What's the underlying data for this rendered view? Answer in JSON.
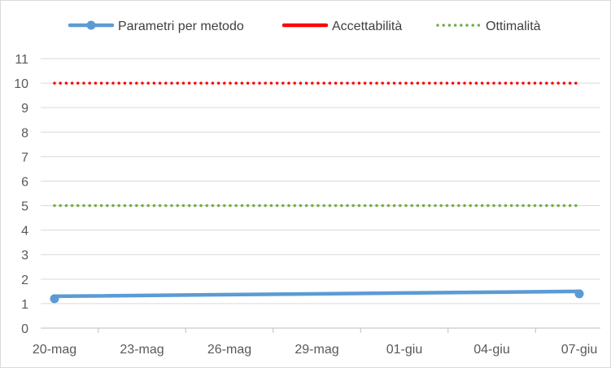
{
  "chart_data": {
    "type": "line",
    "title": "",
    "xlabel": "",
    "ylabel": "",
    "x_ticks": [
      "20-mag",
      "23-mag",
      "26-mag",
      "29-mag",
      "01-giu",
      "04-giu",
      "07-giu"
    ],
    "ylim": [
      0,
      11
    ],
    "y_ticks": [
      0,
      1,
      2,
      3,
      4,
      5,
      6,
      7,
      8,
      9,
      10,
      11
    ],
    "grid": true,
    "legend_position": "top",
    "series": [
      {
        "name": "Parametri per metodo",
        "style": "solid-with-markers",
        "color": "#5b9bd5",
        "points": [
          {
            "x": "20-mag",
            "y": 1.2
          },
          {
            "x": "07-giu",
            "y": 1.4
          }
        ],
        "trend": [
          {
            "x": "20-mag",
            "y": 1.3
          },
          {
            "x": "07-giu",
            "y": 1.5
          }
        ]
      },
      {
        "name": "Accettabilità",
        "style": "dotted",
        "color": "#ff0000",
        "points": [
          {
            "x": "20-mag",
            "y": 10
          },
          {
            "x": "07-giu",
            "y": 10
          }
        ]
      },
      {
        "name": "Ottimalità",
        "style": "dotted",
        "color": "#70ad47",
        "points": [
          {
            "x": "20-mag",
            "y": 5
          },
          {
            "x": "07-giu",
            "y": 5
          }
        ]
      }
    ]
  }
}
